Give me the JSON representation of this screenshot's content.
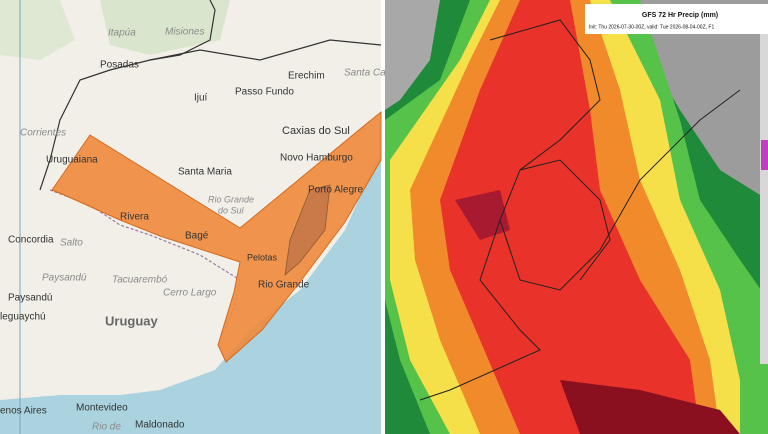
{
  "left_map": {
    "labels": [
      "Itapúa",
      "Misiones",
      "Posadas",
      "Erechim",
      "Santa Cat",
      "Ijuí",
      "Passo Fundo",
      "Corrientes",
      "Caxias do Sul",
      "Uruguaiana",
      "Novo Hamburgo",
      "Santa Maria",
      "Porto Alegre",
      "Rio Grande",
      "do Sul",
      "Rivera",
      "Bagé",
      "Concordia",
      "Salto",
      "Pelotas",
      "Paysandú",
      "Tacuarembó",
      "Cerro Largo",
      "Rio Grande",
      "Paysandú",
      "leguaychú",
      "Uruguay",
      "enos Aires",
      "Montevideo",
      "Rio de",
      "Maldonado"
    ]
  },
  "right_map": {
    "title": "GFS 72 Hr Precip (mm)",
    "subtitle": "Init: Thu 2026-07-30-00Z, valid: Tue 2026-08-04-00Z, F1"
  }
}
